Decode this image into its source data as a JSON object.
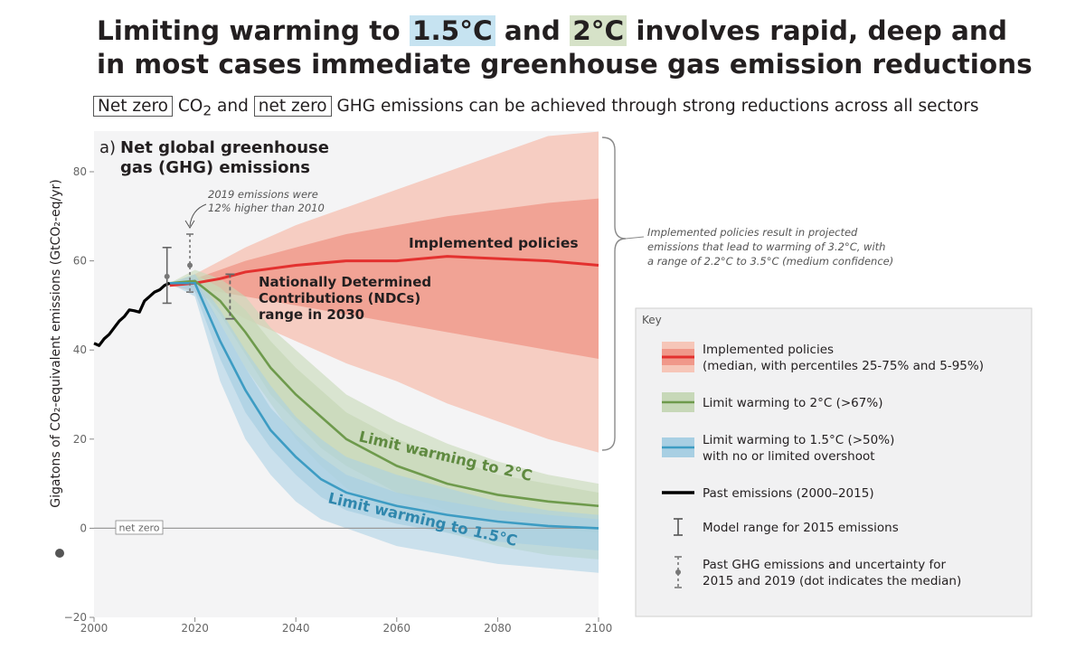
{
  "header": {
    "title_line1_pre": "Limiting warming to ",
    "title_hl1": "1.5°C",
    "title_mid": " and ",
    "title_hl2": "2°C",
    "title_line1_post": " involves rapid, deep and",
    "title_line2": "in most cases immediate greenhouse gas emission reductions",
    "sub_box1": "Net zero",
    "sub_co2": " CO",
    "sub_co2_sub": "2",
    "sub_and": " and ",
    "sub_box2": "net zero",
    "sub_rest": " GHG emissions can be achieved through strong reductions across all sectors"
  },
  "colors": {
    "hl_blue": "#c6e3f1",
    "hl_green": "#d6e2c8",
    "panel_bg": "#f4f4f5",
    "key_bg": "#f1f1f2",
    "impl_outer": "#f6c6b8",
    "impl_inner": "#f0988a",
    "impl_line": "#e3312f",
    "two_band": "#c7d8b8",
    "two_line": "#6e9a4c",
    "one5_band": "#a8cfe3",
    "one5_line": "#3d9cc3",
    "past": "#000000"
  },
  "chart_data": {
    "type": "area",
    "panel_label": "a)",
    "title": "Net global greenhouse gas (GHG) emissions",
    "title_line1": "Net global greenhouse",
    "title_line2": "gas (GHG) emissions",
    "xlabel": "",
    "ylabel": "Gigatons of CO₂-equivalent emissions (GtCO₂-eq/yr)",
    "xlim": [
      2000,
      2100
    ],
    "ylim": [
      -20,
      80
    ],
    "xticks": [
      2000,
      2020,
      2040,
      2060,
      2080,
      2100
    ],
    "yticks": [
      -20,
      0,
      20,
      40,
      60,
      80
    ],
    "net_zero_label": "net zero",
    "past_emissions": {
      "name": "Past emissions (2000–2015)",
      "x": [
        2000,
        2001,
        2002,
        2003,
        2004,
        2005,
        2006,
        2007,
        2008,
        2009,
        2010,
        2011,
        2012,
        2013,
        2014,
        2015
      ],
      "y": [
        41.5,
        41,
        42.5,
        43.5,
        45,
        46.5,
        47.5,
        49,
        48.8,
        48.5,
        51,
        52,
        53,
        53.5,
        54.5,
        55
      ]
    },
    "implemented_policies": {
      "name": "Implemented policies",
      "x": [
        2015,
        2020,
        2025,
        2030,
        2040,
        2050,
        2060,
        2070,
        2080,
        2090,
        2100
      ],
      "median": [
        54.5,
        55,
        56,
        57.5,
        59,
        60,
        60,
        61,
        60.5,
        60,
        59
      ],
      "p25": [
        54.5,
        54,
        53,
        52,
        50,
        48,
        46,
        44,
        42,
        40,
        38
      ],
      "p75": [
        54.5,
        56,
        58,
        60,
        63,
        66,
        68,
        70,
        71.5,
        73,
        74
      ],
      "p5": [
        54.5,
        53,
        50,
        47,
        42,
        37,
        33,
        28,
        24,
        20,
        17
      ],
      "p95": [
        54.5,
        57,
        60,
        63,
        68,
        72,
        76,
        80,
        84,
        88,
        89
      ]
    },
    "limit_2c": {
      "name": "Limit warming to 2°C (>67%)",
      "x": [
        2015,
        2020,
        2025,
        2030,
        2035,
        2040,
        2045,
        2050,
        2060,
        2070,
        2080,
        2090,
        2100
      ],
      "median": [
        55,
        55.5,
        51,
        44,
        36,
        30,
        25,
        20,
        14,
        10,
        7.5,
        6,
        5
      ],
      "p25": [
        55,
        55,
        48,
        39,
        30,
        24,
        18,
        14,
        8,
        4,
        1.5,
        0,
        -1
      ],
      "p75": [
        55,
        57,
        54,
        49,
        42,
        36,
        31,
        26,
        20,
        16,
        12,
        10,
        8
      ],
      "p5": [
        55,
        54,
        46,
        36,
        28,
        20,
        14,
        9,
        3,
        -1,
        -4,
        -6,
        -7
      ],
      "p95": [
        55,
        58,
        56,
        52,
        45,
        40,
        35,
        30,
        24,
        19,
        15,
        12,
        10
      ]
    },
    "limit_1_5c": {
      "name": "Limit warming to 1.5°C (>50%) with no or limited overshoot",
      "x": [
        2015,
        2020,
        2025,
        2030,
        2035,
        2040,
        2045,
        2050,
        2060,
        2070,
        2080,
        2090,
        2100
      ],
      "median": [
        55,
        55,
        42,
        31,
        22,
        16,
        11,
        8,
        5,
        3,
        1.5,
        0.5,
        0
      ],
      "p25": [
        55,
        53,
        38,
        26,
        18,
        12,
        7,
        4,
        1,
        -1,
        -3,
        -4,
        -5
      ],
      "p75": [
        55,
        56,
        46,
        36,
        27,
        21,
        16,
        12,
        8,
        6,
        4,
        3,
        2
      ],
      "p5": [
        55,
        52,
        33,
        20,
        12,
        6,
        2,
        0,
        -4,
        -6,
        -8,
        -9,
        -10
      ],
      "p95": [
        55,
        57,
        49,
        40,
        32,
        25,
        20,
        16,
        12,
        9,
        6,
        4,
        3
      ]
    },
    "model_range_2015": {
      "x": 2015,
      "min": 50.5,
      "max": 63,
      "median": 56.5
    },
    "past_uncertainty_2019": {
      "x": 2019,
      "min": 53,
      "max": 66,
      "median": 59
    },
    "ndc_range_2030": {
      "x": 2030,
      "min": 47,
      "max": 57,
      "label_line1": "Nationally Determined",
      "label_line2": "Contributions (NDCs)",
      "label_line3": "range in 2030"
    },
    "annotation_2019_line1": "2019 emissions were",
    "annotation_2019_line2": "12% higher than 2010",
    "implemented_label": "Implemented policies",
    "two_deg_label": "Limit warming to 2°C",
    "one5_label": "Limit warming to 1.5°C",
    "brace_note": [
      "Implemented policies result in projected",
      "emissions that lead to warming of 3.2°C, with",
      "a range of 2.2°C to 3.5°C (medium confidence)"
    ]
  },
  "key": {
    "title": "Key",
    "items": [
      {
        "lines": [
          "Implemented policies",
          "(median, with percentiles 25-75% and 5-95%)"
        ]
      },
      {
        "lines": [
          "Limit warming to 2°C (>67%)"
        ]
      },
      {
        "lines": [
          "Limit warming to 1.5°C (>50%)",
          "with no or limited overshoot"
        ]
      },
      {
        "lines": [
          "Past emissions (2000–2015)"
        ]
      },
      {
        "lines": [
          "Model range for 2015 emissions"
        ]
      },
      {
        "lines": [
          "Past GHG emissions and uncertainty for",
          "2015 and 2019 (dot indicates the median)"
        ]
      }
    ]
  }
}
